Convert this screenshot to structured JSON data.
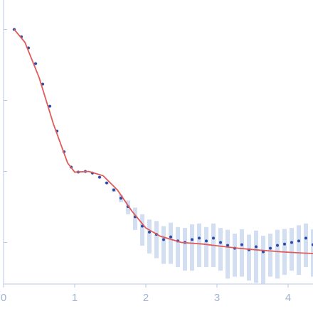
{
  "chart_data": {
    "type": "scatter",
    "log_y": true,
    "xlim": [
      0,
      4.35
    ],
    "xticks": [
      0,
      1,
      2,
      3,
      4
    ],
    "ylim": [
      0.00026,
      2.6
    ],
    "yticks": [
      0.001,
      0.01,
      0.1,
      1
    ],
    "series": [
      {
        "mode": "markers",
        "color": "#2b4ba3",
        "error_color": "#c7d6ef",
        "x": [
          0.15,
          0.25,
          0.35,
          0.45,
          0.55,
          0.65,
          0.75,
          0.85,
          0.95,
          1.05,
          1.15,
          1.25,
          1.35,
          1.45,
          1.55,
          1.65,
          1.75,
          1.85,
          1.95,
          2.05,
          2.15,
          2.25,
          2.35,
          2.45,
          2.55,
          2.65,
          2.75,
          2.85,
          2.95,
          3.05,
          3.15,
          3.25,
          3.35,
          3.45,
          3.55,
          3.65,
          3.75,
          3.85,
          3.95,
          4.05,
          4.15,
          4.25,
          4.35
        ],
        "values": [
          1.0,
          0.79,
          0.55,
          0.33,
          0.17,
          0.083,
          0.037,
          0.019,
          0.0115,
          0.0098,
          0.01,
          0.0095,
          0.0083,
          0.0069,
          0.0055,
          0.0042,
          0.0032,
          0.0023,
          0.0017,
          0.0014,
          0.0013,
          0.0011,
          0.0012,
          0.00105,
          0.001,
          0.0011,
          0.00115,
          0.00105,
          0.00115,
          0.001,
          0.00091,
          0.00083,
          0.00093,
          0.00079,
          0.00087,
          0.00074,
          0.00083,
          0.00091,
          0.00095,
          0.001,
          0.00105,
          0.00115,
          0.00093
        ],
        "errors": [
          0.01,
          0.008,
          0.006,
          0.004,
          0.002,
          0.001,
          0.0005,
          0.0003,
          0.0002,
          0.0002,
          0.0002,
          0.0002,
          0.0002,
          0.0002,
          0.0003,
          0.0005,
          0.0007,
          0.0008,
          0.0008,
          0.0007,
          0.0007,
          0.0006,
          0.0007,
          0.0006,
          0.0006,
          0.0007,
          0.0007,
          0.0006,
          0.0007,
          0.0006,
          0.0006,
          0.0005,
          0.0006,
          0.0005,
          0.0006,
          0.0005,
          0.0005,
          0.0006,
          0.0006,
          0.0006,
          0.0007,
          0.0007,
          0.0006
        ]
      },
      {
        "mode": "line",
        "color": "#e05c5c",
        "x": [
          0.15,
          0.3,
          0.5,
          0.7,
          0.9,
          1.0,
          1.2,
          1.4,
          1.6,
          1.8,
          2.0,
          2.2,
          2.5,
          2.8,
          3.0,
          3.3,
          3.6,
          3.9,
          4.2,
          4.35
        ],
        "values": [
          1.0,
          0.66,
          0.21,
          0.047,
          0.0132,
          0.0098,
          0.01,
          0.0087,
          0.0055,
          0.0028,
          0.0016,
          0.00123,
          0.001,
          0.00095,
          0.0009,
          0.00083,
          0.00078,
          0.00074,
          0.00071,
          0.0007
        ]
      }
    ]
  }
}
